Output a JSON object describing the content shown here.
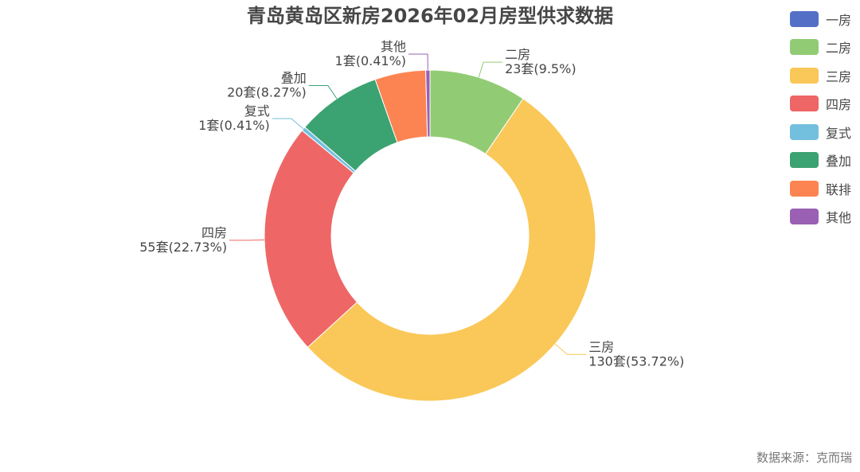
{
  "title": "青岛黄岛区新房2026年02月房型供求数据",
  "source": "数据来源：克而瑞",
  "chart_data": {
    "type": "pie",
    "variant": "donut",
    "title": "青岛黄岛区新房2026年02月房型供求数据",
    "legend_position": "top-right",
    "unit": "套",
    "slices": [
      {
        "name": "一房",
        "value": 0,
        "percent": "0%",
        "color": "#5470c6",
        "label": null
      },
      {
        "name": "二房",
        "value": 23,
        "percent": "9.5%",
        "color": "#91cc75",
        "label": "23套(9.5%)"
      },
      {
        "name": "三房",
        "value": 130,
        "percent": "53.72%",
        "color": "#fac858",
        "label": "130套(53.72%)"
      },
      {
        "name": "四房",
        "value": 55,
        "percent": "22.73%",
        "color": "#ee6666",
        "label": "55套(22.73%)"
      },
      {
        "name": "复式",
        "value": 1,
        "percent": "0.41%",
        "color": "#73c0de",
        "label": "1套(0.41%)"
      },
      {
        "name": "叠加",
        "value": 20,
        "percent": "8.27%",
        "color": "#3ba272",
        "label": "20套(8.27%)"
      },
      {
        "name": "联排",
        "value": 12,
        "percent": "4.96%",
        "color": "#fc8452",
        "label": null
      },
      {
        "name": "其他",
        "value": 1,
        "percent": "0.41%",
        "color": "#9a60b4",
        "label": "1套(0.41%)"
      }
    ]
  }
}
